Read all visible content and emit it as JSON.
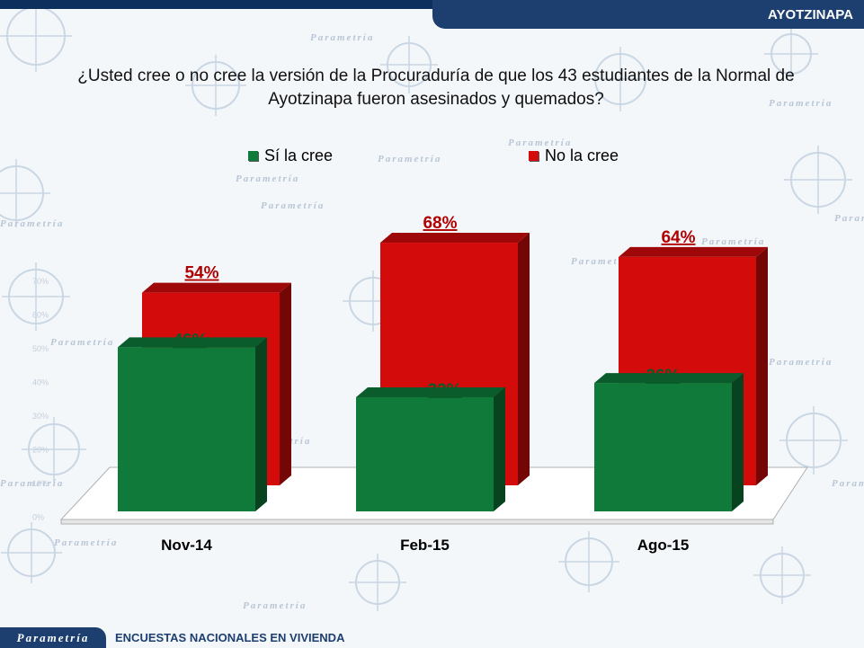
{
  "header": {
    "section_label": "AYOTZINAPA"
  },
  "question": "¿Usted cree o no cree la versión de la Procuraduría de que los 43 estudiantes de la Normal de Ayotzinapa fueron asesinados y quemados?",
  "colors": {
    "green": "#0f7a3a",
    "red": "#d40b0b",
    "header": "#1c3f70"
  },
  "footer": {
    "brand": "Parametría",
    "text": "ENCUESTAS NACIONALES EN VIVIENDA"
  },
  "background": {
    "watermark_brand": "Parametría",
    "axis_ticks": [
      "70%",
      "60%",
      "50%",
      "40%",
      "30%",
      "20%",
      "10%",
      "0%"
    ]
  },
  "chart_data": {
    "type": "bar",
    "title": "",
    "categories": [
      "Nov-14",
      "Feb-15",
      "Ago-15"
    ],
    "series": [
      {
        "name": "Sí la cree",
        "values": [
          46,
          32,
          36
        ],
        "color": "#0f7a3a"
      },
      {
        "name": "No la cree",
        "values": [
          54,
          68,
          64
        ],
        "color": "#d40b0b"
      }
    ],
    "value_suffix": "%",
    "ylim": [
      0,
      100
    ],
    "legend_position": "top",
    "grid": false,
    "style": "3d"
  }
}
